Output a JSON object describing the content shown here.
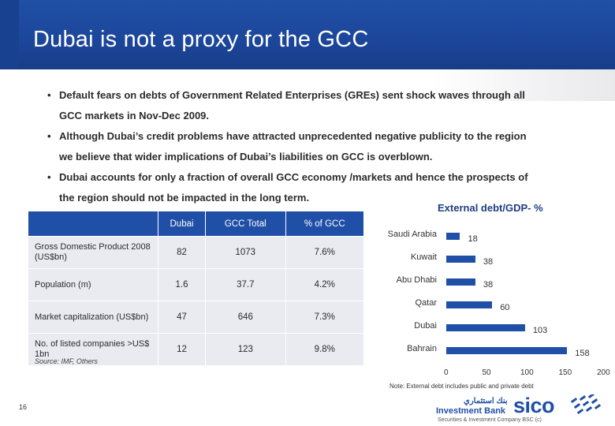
{
  "header": {
    "title": "Dubai is not a proxy for the GCC"
  },
  "bullets": [
    {
      "line1": "Default  fears  on debts of Government Related Enterprises (GREs) sent shock waves through all",
      "line2": "GCC markets in Nov-Dec 2009."
    },
    {
      "line1": "Although Dubai’s credit problems have attracted unprecedented negative publicity to the region",
      "line2": "we believe that wider implications of Dubai’s liabilities on GCC is overblown."
    },
    {
      "line1": "Dubai accounts for only a fraction of overall GCC economy /markets and hence the prospects of",
      "line2": "the region should not be impacted in the long term."
    }
  ],
  "table": {
    "headers": [
      "",
      "Dubai",
      "GCC Total",
      "% of GCC"
    ],
    "rows": [
      {
        "label": "Gross Domestic Product 2008 (US$bn)",
        "dubai": "82",
        "gcc": "1073",
        "pct": "7.6%"
      },
      {
        "label": "Population (m)",
        "dubai": "1.6",
        "gcc": "37.7",
        "pct": "4.2%"
      },
      {
        "label": "Market capitalization (US$bn)",
        "dubai": "47",
        "gcc": "646",
        "pct": "7.3%"
      },
      {
        "label": "No. of listed companies >US$ 1bn",
        "dubai": "12",
        "gcc": "123",
        "pct": "9.8%"
      }
    ]
  },
  "source": "Source: IMF, Others",
  "page_number": "16",
  "note": "Note: External debt includes public and private debt",
  "logo": {
    "arabic": "بنك استثماري",
    "subtitle": "Investment Bank",
    "name": "sico",
    "footer": "Securities & Investment Company BSC (c)"
  },
  "chart_data": {
    "type": "bar",
    "orientation": "horizontal",
    "title": "External debt/GDP- %",
    "categories": [
      "Saudi Arabia",
      "Kuwait",
      "Abu Dhabi",
      "Qatar",
      "Dubai",
      "Bahrain"
    ],
    "values": [
      18,
      38,
      38,
      60,
      103,
      158
    ],
    "xlim": [
      0,
      200
    ],
    "xticks": [
      "0",
      "50",
      "100",
      "150",
      "200"
    ],
    "color": "#1f4fa6",
    "grid": false
  }
}
